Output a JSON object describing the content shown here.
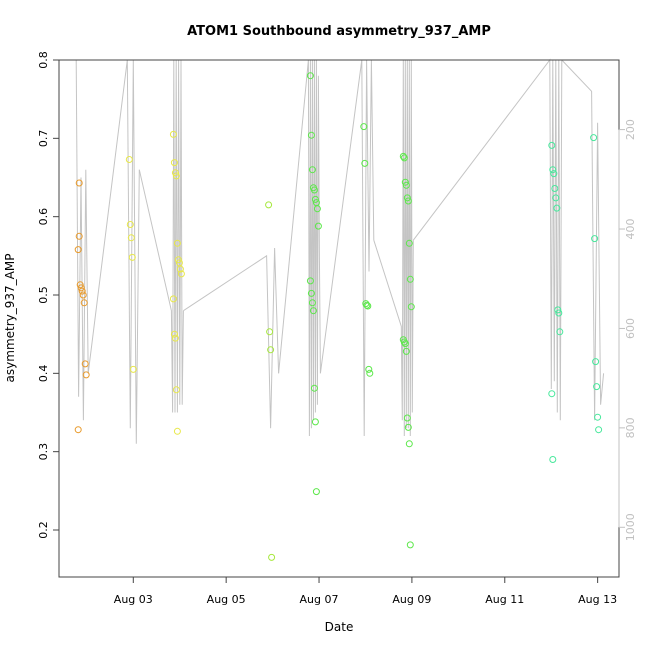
{
  "chart_data": {
    "type": "scatter",
    "title": "ATOM1 Southbound asymmetry_937_AMP",
    "xlabel": "Date",
    "ylabel": "asymmetry_937_AMP",
    "x_ticks": [
      "Aug 03",
      "Aug 05",
      "Aug 07",
      "Aug 09",
      "Aug 11",
      "Aug 13"
    ],
    "y_ticks": [
      "0.2",
      "0.3",
      "0.4",
      "0.5",
      "0.6",
      "0.7",
      "0.8"
    ],
    "y2_ticks": [
      "200",
      "400",
      "600",
      "800",
      "1000"
    ],
    "xlim_days": [
      1.4,
      13.46
    ],
    "ylim": [
      0.14,
      0.8
    ],
    "y2lim": [
      60,
      1100
    ],
    "grid": false,
    "colors": {
      "orange": "#e89a2b",
      "yellow": "#e8e84a",
      "lime": "#a6e83c",
      "green": "#5ce84a",
      "mint": "#48e89c",
      "line": "#c4c4c4",
      "axis": "#444444",
      "y2axis": "#c0c0c0"
    },
    "groups": [
      {
        "day": 1.9,
        "color": "orange",
        "y": [
          0.558,
          0.575,
          0.513,
          0.509,
          0.505,
          0.5,
          0.49,
          0.412,
          0.398,
          0.328,
          0.643
        ],
        "line": [
          0.8,
          0.37,
          0.65,
          0.34,
          0.66,
          0.4
        ]
      },
      {
        "day": 3.0,
        "color": "yellow",
        "y": [
          0.673,
          0.59,
          0.573,
          0.548,
          0.405
        ],
        "line": [
          0.8,
          0.33,
          0.8,
          0.31,
          0.66
        ]
      },
      {
        "day": 3.95,
        "color": "yellow",
        "y": [
          0.705,
          0.669,
          0.656,
          0.652,
          0.566,
          0.545,
          0.541,
          0.533,
          0.527,
          0.495,
          0.45,
          0.445,
          0.379,
          0.326
        ],
        "line": [
          0.48,
          0.35,
          0.8,
          0.35,
          0.8,
          0.35,
          0.8,
          0.36,
          0.8,
          0.36,
          0.48
        ]
      },
      {
        "day": 6.0,
        "color": "lime",
        "y": [
          0.615,
          0.453,
          0.43,
          0.165
        ],
        "line": [
          0.55,
          0.33,
          0.56,
          0.4
        ]
      },
      {
        "day": 6.9,
        "color": "green",
        "y": [
          0.78,
          0.704,
          0.66,
          0.637,
          0.634,
          0.622,
          0.618,
          0.61,
          0.588,
          0.518,
          0.502,
          0.49,
          0.48,
          0.381,
          0.338,
          0.249
        ],
        "line": [
          0.8,
          0.32,
          0.8,
          0.33,
          0.8,
          0.34,
          0.8,
          0.35,
          0.8,
          0.36,
          0.78,
          0.55,
          0.4
        ]
      },
      {
        "day": 8.05,
        "color": "green",
        "y": [
          0.715,
          0.668,
          0.489,
          0.487,
          0.486,
          0.405,
          0.4
        ],
        "line": [
          0.8,
          0.32,
          0.8,
          0.53,
          0.8,
          0.57
        ]
      },
      {
        "day": 8.9,
        "color": "green",
        "y": [
          0.677,
          0.675,
          0.644,
          0.64,
          0.624,
          0.62,
          0.566,
          0.52,
          0.485,
          0.443,
          0.44,
          0.438,
          0.428,
          0.343,
          0.331,
          0.31,
          0.181
        ],
        "line": [
          0.46,
          0.34,
          0.8,
          0.32,
          0.8,
          0.33,
          0.8,
          0.33,
          0.8,
          0.32,
          0.8,
          0.35,
          0.57
        ]
      },
      {
        "day": 12.1,
        "color": "mint",
        "y": [
          0.691,
          0.66,
          0.655,
          0.636,
          0.624,
          0.611,
          0.481,
          0.477,
          0.453,
          0.374,
          0.29
        ],
        "line": [
          0.8,
          0.38,
          0.8,
          0.39,
          0.8,
          0.35,
          0.8,
          0.34,
          0.8
        ]
      },
      {
        "day": 13.0,
        "color": "mint",
        "y": [
          0.701,
          0.572,
          0.415,
          0.383,
          0.344,
          0.328
        ],
        "line": [
          0.76,
          0.34,
          0.72,
          0.36,
          0.4
        ]
      }
    ]
  }
}
